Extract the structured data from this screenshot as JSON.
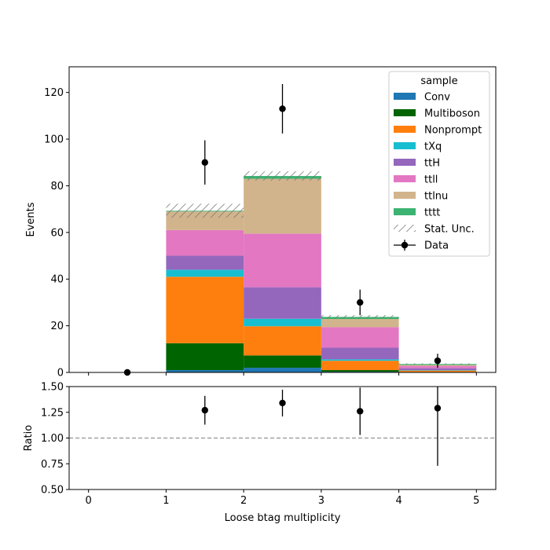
{
  "chart_data": {
    "type": "bar",
    "stacked": true,
    "bin_edges": [
      0,
      1,
      2,
      3,
      4,
      5
    ],
    "categories": [
      "0",
      "1",
      "2",
      "3",
      "4"
    ],
    "series": [
      {
        "name": "Conv",
        "color": "#1f77b4",
        "values": [
          0,
          1.0,
          2.0,
          0.3,
          0.0
        ]
      },
      {
        "name": "Multiboson",
        "color": "#006400",
        "values": [
          0,
          11.5,
          5.3,
          0.7,
          0.2
        ]
      },
      {
        "name": "Nonprompt",
        "color": "#ff7f0e",
        "values": [
          0,
          28.5,
          12.5,
          4.0,
          0.6
        ]
      },
      {
        "name": "tXq",
        "color": "#17becf",
        "values": [
          0,
          3.0,
          3.2,
          0.6,
          0.2
        ]
      },
      {
        "name": "ttH",
        "color": "#9467bd",
        "values": [
          0,
          6.0,
          13.5,
          5.0,
          0.8
        ]
      },
      {
        "name": "ttll",
        "color": "#e377c2",
        "values": [
          0,
          11.0,
          23.0,
          8.8,
          1.0
        ]
      },
      {
        "name": "ttlnu",
        "color": "#d2b48c",
        "values": [
          0,
          8.0,
          23.5,
          3.5,
          0.4
        ]
      },
      {
        "name": "tttt",
        "color": "#3cb371",
        "values": [
          0,
          0.3,
          1.2,
          0.9,
          0.4
        ]
      }
    ],
    "stat_unc": [
      0,
      3.0,
      2.0,
      0.8,
      0.3
    ],
    "data": {
      "name": "Data",
      "x": [
        0.5,
        1.5,
        2.5,
        3.5,
        4.5
      ],
      "y": [
        0,
        90,
        113,
        30,
        5
      ],
      "yerr": [
        0,
        9.5,
        10.6,
        5.5,
        3.0
      ]
    },
    "ratio": {
      "x": [
        1.5,
        2.5,
        3.5,
        4.5
      ],
      "y": [
        1.27,
        1.34,
        1.26,
        1.29
      ],
      "yerr": [
        0.14,
        0.13,
        0.23,
        0.56
      ],
      "reference": 1.0,
      "ylim": [
        0.5,
        1.5
      ],
      "yticks": [
        "0.50",
        "0.75",
        "1.00",
        "1.25",
        "1.50"
      ],
      "ylabel": "Ratio"
    },
    "xlim": [
      -0.25,
      5.25
    ],
    "ylim": [
      0,
      131
    ],
    "xticks": [
      "0",
      "1",
      "2",
      "3",
      "4",
      "5"
    ],
    "yticks": [
      "0",
      "20",
      "40",
      "60",
      "80",
      "100",
      "120"
    ],
    "xlabel": "Loose btag multiplicity",
    "ylabel": "Events",
    "legend": {
      "title": "sample",
      "placement": "top-right",
      "stat_label": "Stat. Unc."
    }
  }
}
